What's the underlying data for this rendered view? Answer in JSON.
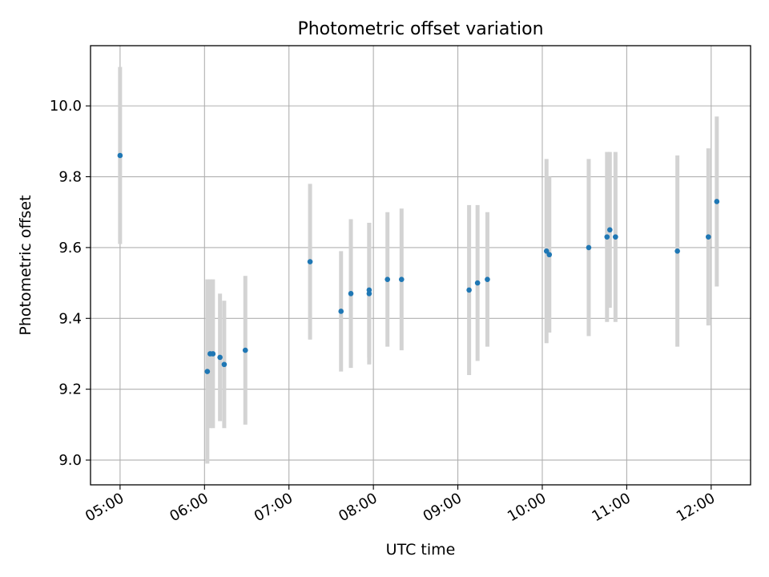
{
  "chart_data": {
    "type": "scatter",
    "title": "Photometric offset variation",
    "xlabel": "UTC time",
    "ylabel": "Photometric offset",
    "x_ticks": [
      "05:00",
      "06:00",
      "07:00",
      "08:00",
      "09:00",
      "10:00",
      "11:00",
      "12:00"
    ],
    "y_ticks": [
      "9.0",
      "9.2",
      "9.4",
      "9.6",
      "9.8",
      "10.0"
    ],
    "xlim": [
      "04:39",
      "12:28"
    ],
    "ylim": [
      8.93,
      10.17
    ],
    "grid": true,
    "colors": {
      "point": "#1f77b4",
      "errorbar": "#d3d3d3",
      "grid": "#b0b0b0"
    },
    "points": [
      {
        "x": "05:00",
        "y": 9.86,
        "yerr": 0.25
      },
      {
        "x": "06:02",
        "y": 9.25,
        "yerr": 0.26
      },
      {
        "x": "06:04",
        "y": 9.3,
        "yerr": 0.21
      },
      {
        "x": "06:06",
        "y": 9.3,
        "yerr": 0.21
      },
      {
        "x": "06:11",
        "y": 9.29,
        "yerr": 0.18
      },
      {
        "x": "06:14",
        "y": 9.27,
        "yerr": 0.18
      },
      {
        "x": "06:29",
        "y": 9.31,
        "yerr": 0.21
      },
      {
        "x": "07:15",
        "y": 9.56,
        "yerr": 0.22
      },
      {
        "x": "07:37",
        "y": 9.42,
        "yerr": 0.17
      },
      {
        "x": "07:44",
        "y": 9.47,
        "yerr": 0.21
      },
      {
        "x": "07:57",
        "y": 9.47,
        "yerr": 0.2
      },
      {
        "x": "07:57",
        "y": 9.48,
        "yerr": 0.19
      },
      {
        "x": "08:10",
        "y": 9.51,
        "yerr": 0.19
      },
      {
        "x": "08:20",
        "y": 9.51,
        "yerr": 0.2
      },
      {
        "x": "09:08",
        "y": 9.48,
        "yerr": 0.24
      },
      {
        "x": "09:14",
        "y": 9.5,
        "yerr": 0.22
      },
      {
        "x": "09:21",
        "y": 9.51,
        "yerr": 0.19
      },
      {
        "x": "10:03",
        "y": 9.59,
        "yerr": 0.26
      },
      {
        "x": "10:05",
        "y": 9.58,
        "yerr": 0.22
      },
      {
        "x": "10:33",
        "y": 9.6,
        "yerr": 0.25
      },
      {
        "x": "10:46",
        "y": 9.63,
        "yerr": 0.24
      },
      {
        "x": "10:48",
        "y": 9.65,
        "yerr": 0.22
      },
      {
        "x": "10:52",
        "y": 9.63,
        "yerr": 0.24
      },
      {
        "x": "11:36",
        "y": 9.59,
        "yerr": 0.27
      },
      {
        "x": "11:58",
        "y": 9.63,
        "yerr": 0.25
      },
      {
        "x": "12:04",
        "y": 9.73,
        "yerr": 0.24
      }
    ]
  }
}
